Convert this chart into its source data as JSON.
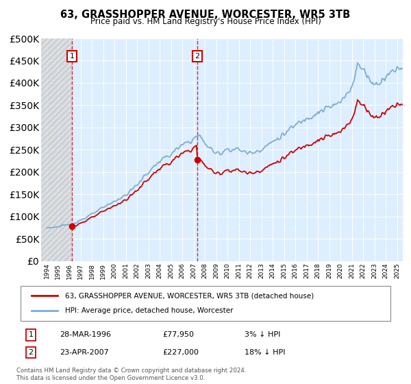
{
  "title": "63, GRASSHOPPER AVENUE, WORCESTER, WR5 3TB",
  "subtitle": "Price paid vs. HM Land Registry's House Price Index (HPI)",
  "legend_line1": "63, GRASSHOPPER AVENUE, WORCESTER, WR5 3TB (detached house)",
  "legend_line2": "HPI: Average price, detached house, Worcester",
  "footer": "Contains HM Land Registry data © Crown copyright and database right 2024.\nThis data is licensed under the Open Government Licence v3.0.",
  "sale1_x": 1996.24,
  "sale1_y": 77950,
  "sale2_x": 2007.31,
  "sale2_y": 227000,
  "line_color_price": "#cc0000",
  "line_color_hpi": "#7dadd4",
  "marker_color": "#cc0000",
  "dashed_line_color": "#cc0000",
  "background_plot": "#ddeeff",
  "ylim": [
    0,
    500000
  ],
  "xlim": [
    1993.5,
    2025.5
  ],
  "ann1_date": "28-MAR-1996",
  "ann1_price": "£77,950",
  "ann1_hpi": "3% ↓ HPI",
  "ann2_date": "23-APR-2007",
  "ann2_price": "£227,000",
  "ann2_hpi": "18% ↓ HPI"
}
